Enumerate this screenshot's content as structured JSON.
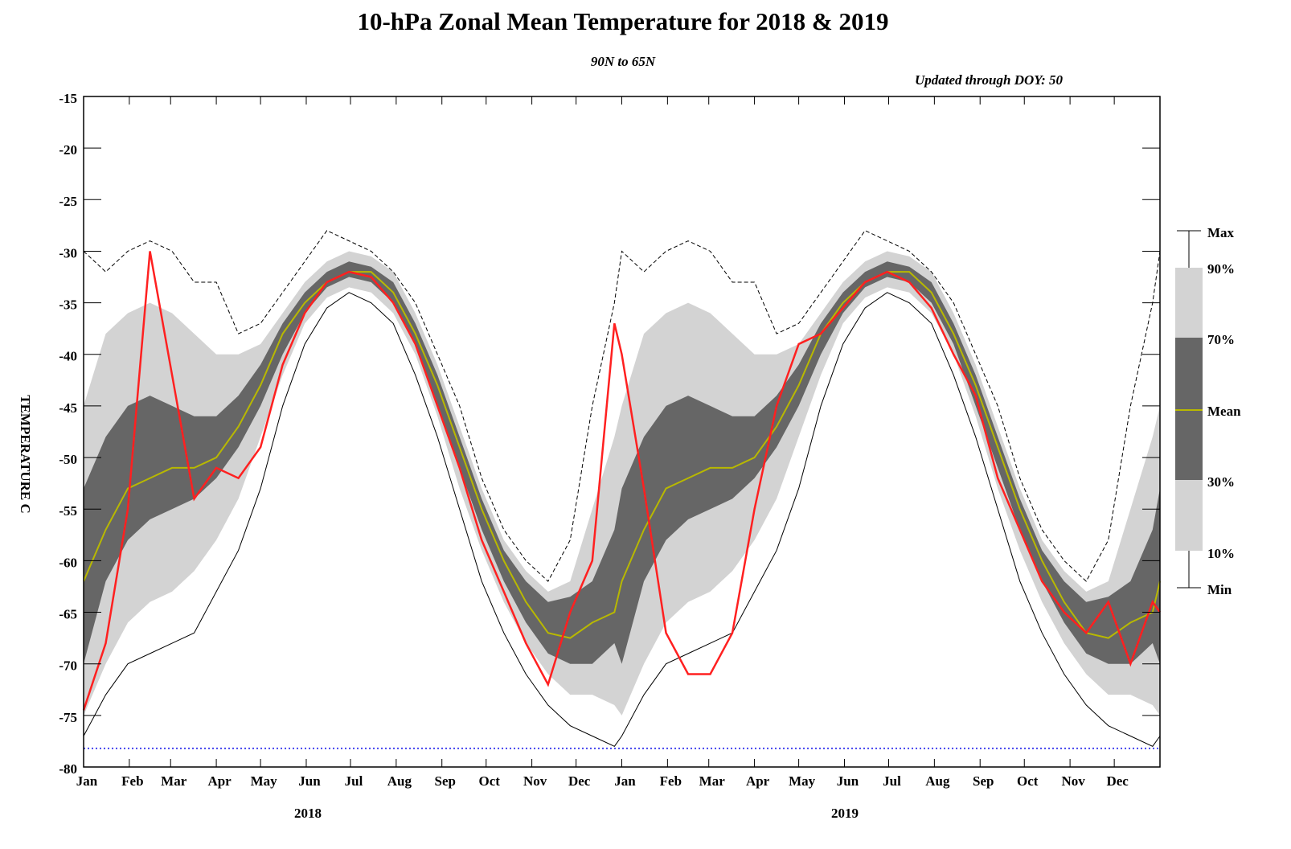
{
  "chart_data": {
    "type": "line",
    "title": "10-hPa Zonal Mean Temperature for 2018 & 2019",
    "subtitle": "90N to 65N",
    "annotation": "Updated through DOY:  50",
    "y_label": "TEMPERATURE C",
    "year_labels": [
      "2018",
      "2019"
    ],
    "x": [
      0,
      15,
      30,
      45,
      60,
      75,
      90,
      105,
      120,
      135,
      150,
      165,
      180,
      195,
      210,
      225,
      240,
      255,
      270,
      285,
      300,
      315,
      330,
      345,
      360,
      365,
      380,
      395,
      410,
      425,
      440,
      455,
      470,
      485,
      500,
      515,
      530,
      545,
      560,
      575,
      590,
      605,
      620,
      635,
      650,
      665,
      680,
      695,
      710,
      725,
      730
    ],
    "xlim": [
      0,
      730
    ],
    "xticks": [
      {
        "value": 0,
        "label": "Jan"
      },
      {
        "value": 31,
        "label": "Feb"
      },
      {
        "value": 59,
        "label": "Mar"
      },
      {
        "value": 90,
        "label": "Apr"
      },
      {
        "value": 120,
        "label": "May"
      },
      {
        "value": 151,
        "label": "Jun"
      },
      {
        "value": 181,
        "label": "Jul"
      },
      {
        "value": 212,
        "label": "Aug"
      },
      {
        "value": 243,
        "label": "Sep"
      },
      {
        "value": 273,
        "label": "Oct"
      },
      {
        "value": 304,
        "label": "Nov"
      },
      {
        "value": 334,
        "label": "Dec"
      },
      {
        "value": 365,
        "label": "Jan"
      },
      {
        "value": 396,
        "label": "Feb"
      },
      {
        "value": 424,
        "label": "Mar"
      },
      {
        "value": 455,
        "label": "Apr"
      },
      {
        "value": 485,
        "label": "May"
      },
      {
        "value": 516,
        "label": "Jun"
      },
      {
        "value": 546,
        "label": "Jul"
      },
      {
        "value": 577,
        "label": "Aug"
      },
      {
        "value": 608,
        "label": "Sep"
      },
      {
        "value": 638,
        "label": "Oct"
      },
      {
        "value": 669,
        "label": "Nov"
      },
      {
        "value": 699,
        "label": "Dec"
      }
    ],
    "ylim": [
      -80,
      -15
    ],
    "yticks": [
      -15,
      -20,
      -25,
      -30,
      -35,
      -40,
      -45,
      -50,
      -55,
      -60,
      -65,
      -70,
      -75,
      -80
    ],
    "reference_line": {
      "value": -78.2,
      "color": "#4444ee"
    },
    "series": [
      {
        "name": "Max",
        "color": "#000000",
        "values": [
          -30,
          -32,
          -30,
          -29,
          -30,
          -33,
          -33,
          -38,
          -37,
          -34,
          -31,
          -28,
          -29,
          -30,
          -32,
          -35,
          -40,
          -45,
          -52,
          -57,
          -60,
          -62,
          -58,
          -45,
          -35,
          -30,
          -32,
          -30,
          -29,
          -30,
          -33,
          -33,
          -38,
          -37,
          -34,
          -31,
          -28,
          -29,
          -30,
          -32,
          -35,
          -40,
          -45,
          -52,
          -57,
          -60,
          -62,
          -58,
          -45,
          -35,
          -30
        ]
      },
      {
        "name": "90%",
        "color": "#d3d3d3",
        "values": [
          -45,
          -38,
          -36,
          -35,
          -36,
          -38,
          -40,
          -40,
          -39,
          -36,
          -33,
          -31,
          -30,
          -30.5,
          -32,
          -36,
          -41,
          -47,
          -53,
          -58,
          -61,
          -63,
          -62,
          -55,
          -48,
          -45,
          -38,
          -36,
          -35,
          -36,
          -38,
          -40,
          -40,
          -39,
          -36,
          -33,
          -31,
          -30,
          -30.5,
          -32,
          -36,
          -41,
          -47,
          -53,
          -58,
          -61,
          -63,
          -62,
          -55,
          -48,
          -45
        ]
      },
      {
        "name": "70%",
        "color": "#666666",
        "values": [
          -53,
          -48,
          -45,
          -44,
          -45,
          -46,
          -46,
          -44,
          -41,
          -37,
          -34,
          -32,
          -31,
          -31.5,
          -33,
          -37,
          -42,
          -48,
          -54,
          -59,
          -62,
          -64,
          -63.5,
          -62,
          -57,
          -53,
          -48,
          -45,
          -44,
          -45,
          -46,
          -46,
          -44,
          -41,
          -37,
          -34,
          -32,
          -31,
          -31.5,
          -33,
          -37,
          -42,
          -48,
          -54,
          -59,
          -62,
          -64,
          -63.5,
          -62,
          -57,
          -53
        ]
      },
      {
        "name": "Mean",
        "color": "#b8b800",
        "values": [
          -62,
          -57,
          -53,
          -52,
          -51,
          -51,
          -50,
          -47,
          -43,
          -38,
          -35,
          -33,
          -32,
          -32,
          -34,
          -38,
          -43,
          -49,
          -55,
          -60,
          -64,
          -67,
          -67.5,
          -66,
          -65,
          -62,
          -57,
          -53,
          -52,
          -51,
          -51,
          -50,
          -47,
          -43,
          -38,
          -35,
          -33,
          -32,
          -32,
          -34,
          -38,
          -43,
          -49,
          -55,
          -60,
          -64,
          -67,
          -67.5,
          -66,
          -65,
          -62
        ]
      },
      {
        "name": "30%",
        "color": "#666666",
        "values": [
          -70,
          -62,
          -58,
          -56,
          -55,
          -54,
          -52,
          -49,
          -45,
          -40,
          -36,
          -33.5,
          -32.5,
          -33,
          -35,
          -39,
          -45,
          -51,
          -57,
          -62,
          -66,
          -69,
          -70,
          -70,
          -68,
          -70,
          -62,
          -58,
          -56,
          -55,
          -54,
          -52,
          -49,
          -45,
          -40,
          -36,
          -33.5,
          -32.5,
          -33,
          -35,
          -39,
          -45,
          -51,
          -57,
          -62,
          -66,
          -69,
          -70,
          -70,
          -68,
          -70
        ]
      },
      {
        "name": "10%",
        "color": "#d3d3d3",
        "values": [
          -75,
          -70,
          -66,
          -64,
          -63,
          -61,
          -58,
          -54,
          -48,
          -42,
          -37,
          -34.5,
          -33.5,
          -34,
          -36,
          -40,
          -46,
          -53,
          -59,
          -64,
          -68,
          -71,
          -73,
          -73,
          -74,
          -75,
          -70,
          -66,
          -64,
          -63,
          -61,
          -58,
          -54,
          -48,
          -42,
          -37,
          -34.5,
          -33.5,
          -34,
          -36,
          -40,
          -46,
          -53,
          -59,
          -64,
          -68,
          -71,
          -73,
          -73,
          -74,
          -75
        ]
      },
      {
        "name": "Min",
        "color": "#000000",
        "values": [
          -77,
          -73,
          -70,
          -69,
          -68,
          -67,
          -63,
          -59,
          -53,
          -45,
          -39,
          -35.5,
          -34,
          -35,
          -37,
          -42,
          -48,
          -55,
          -62,
          -67,
          -71,
          -74,
          -76,
          -77,
          -78,
          -77,
          -73,
          -70,
          -69,
          -68,
          -67,
          -63,
          -59,
          -53,
          -45,
          -39,
          -35.5,
          -34,
          -35,
          -37,
          -42,
          -48,
          -55,
          -62,
          -67,
          -71,
          -74,
          -76,
          -77,
          -78,
          -77
        ]
      },
      {
        "color": "#ff2020",
        "values": [
          -74.5,
          -68,
          -55,
          -30,
          -42,
          -54,
          -51,
          -52,
          -49,
          -41,
          -36,
          -33,
          -32,
          -32.5,
          -35,
          -39,
          -45,
          -51,
          -58,
          -63,
          -68,
          -72,
          -65,
          -60,
          -37,
          -40,
          -53,
          -67,
          -71,
          -71,
          -67,
          -55,
          -45,
          -39,
          -38,
          -35.5,
          -33,
          -32,
          -33,
          -35.5,
          -40,
          -44,
          -52,
          -57,
          -62,
          -65,
          -67,
          -64,
          -70,
          -64,
          -65
        ]
      }
    ]
  }
}
